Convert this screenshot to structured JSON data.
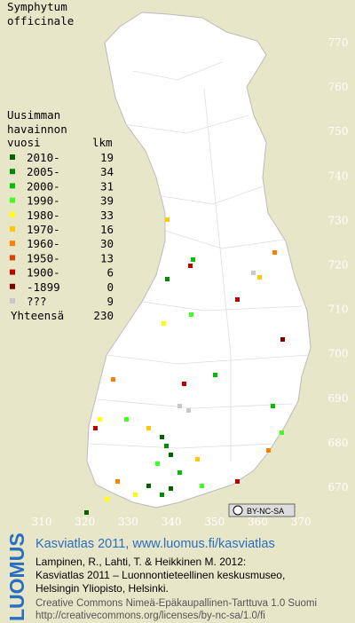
{
  "title": [
    "Symphytum",
    "officinale"
  ],
  "legend": {
    "heading": [
      "Uusimman",
      "havainnon",
      "vuosi"
    ],
    "count_heading": "lkm",
    "rows": [
      {
        "label": "2010-",
        "count": 19,
        "color": "#006400"
      },
      {
        "label": "2005-",
        "count": 34,
        "color": "#008c00"
      },
      {
        "label": "2000-",
        "count": 31,
        "color": "#00c000"
      },
      {
        "label": "1990-",
        "count": 39,
        "color": "#40ff20"
      },
      {
        "label": "1980-",
        "count": 33,
        "color": "#ffff00"
      },
      {
        "label": "1970-",
        "count": 16,
        "color": "#ffc800"
      },
      {
        "label": "1960-",
        "count": 30,
        "color": "#ff8000"
      },
      {
        "label": "1950-",
        "count": 13,
        "color": "#e04000"
      },
      {
        "label": "1900-",
        "count": 6,
        "color": "#c00000"
      },
      {
        "label": "-1899",
        "count": 0,
        "color": "#800000"
      },
      {
        "label": "???",
        "count": 9,
        "color": "#c8c8c8"
      }
    ],
    "total": {
      "label": "Yhteensä",
      "count": 230
    }
  },
  "grid": {
    "east": [
      310,
      320,
      330,
      340,
      350,
      360,
      370
    ],
    "north": [
      770,
      760,
      750,
      740,
      730,
      720,
      710,
      700,
      690,
      680,
      670
    ]
  },
  "license_badge": "BY-NC-SA",
  "footer": {
    "logo": "LUOMUS",
    "headline": "Kasviatlas 2011, www.luomus.fi/kasviatlas",
    "citation": [
      "Lampinen, R., Lahti, T. & Heikkinen M. 2012:",
      "Kasviatlas 2011 – Luonnontieteellinen keskusmuseo,",
      "Helsingin Yliopisto, Helsinki."
    ],
    "license": [
      "Creative Commons Nimeä-Epäkaupallinen-Tarttuva 1.0 Suomi",
      "http://creativecommons.org/licenses/by-nc-sa/1.0/fi"
    ]
  }
}
